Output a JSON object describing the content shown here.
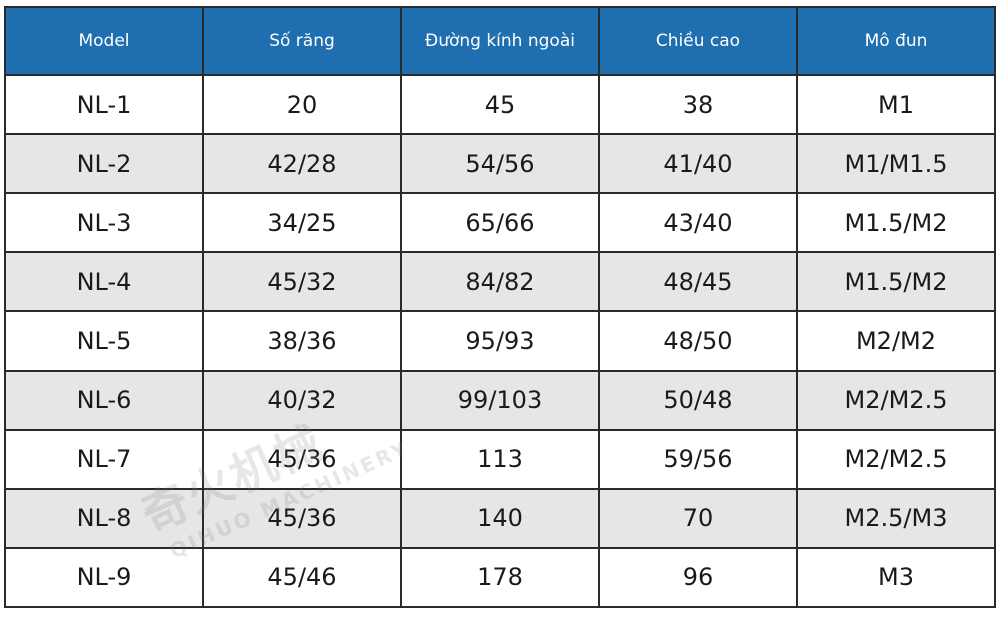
{
  "table": {
    "headers": [
      "Model",
      "Số răng",
      "Đường kính ngoài",
      "Chiều cao",
      "Mô đun"
    ],
    "rows": [
      [
        "NL-1",
        "20",
        "45",
        "38",
        "M1"
      ],
      [
        "NL-2",
        "42/28",
        "54/56",
        "41/40",
        "M1/M1.5"
      ],
      [
        "NL-3",
        "34/25",
        "65/66",
        "43/40",
        "M1.5/M2"
      ],
      [
        "NL-4",
        "45/32",
        "84/82",
        "48/45",
        "M1.5/M2"
      ],
      [
        "NL-5",
        "38/36",
        "95/93",
        "48/50",
        "M2/M2"
      ],
      [
        "NL-6",
        "40/32",
        "99/103",
        "50/48",
        "M2/M2.5"
      ],
      [
        "NL-7",
        "45/36",
        "113",
        "59/56",
        "M2/M2.5"
      ],
      [
        "NL-8",
        "45/36",
        "140",
        "70",
        "M2.5/M3"
      ],
      [
        "NL-9",
        "45/46",
        "178",
        "96",
        "M3"
      ]
    ]
  },
  "watermark": {
    "main": "奇火机械",
    "sub": "QIHUO MACHINERY"
  },
  "colors": {
    "header_bg": "#1f6eb0",
    "header_text": "#ffffff",
    "alt_row_bg": "#e6e6e6",
    "border": "#2a2a2a"
  }
}
